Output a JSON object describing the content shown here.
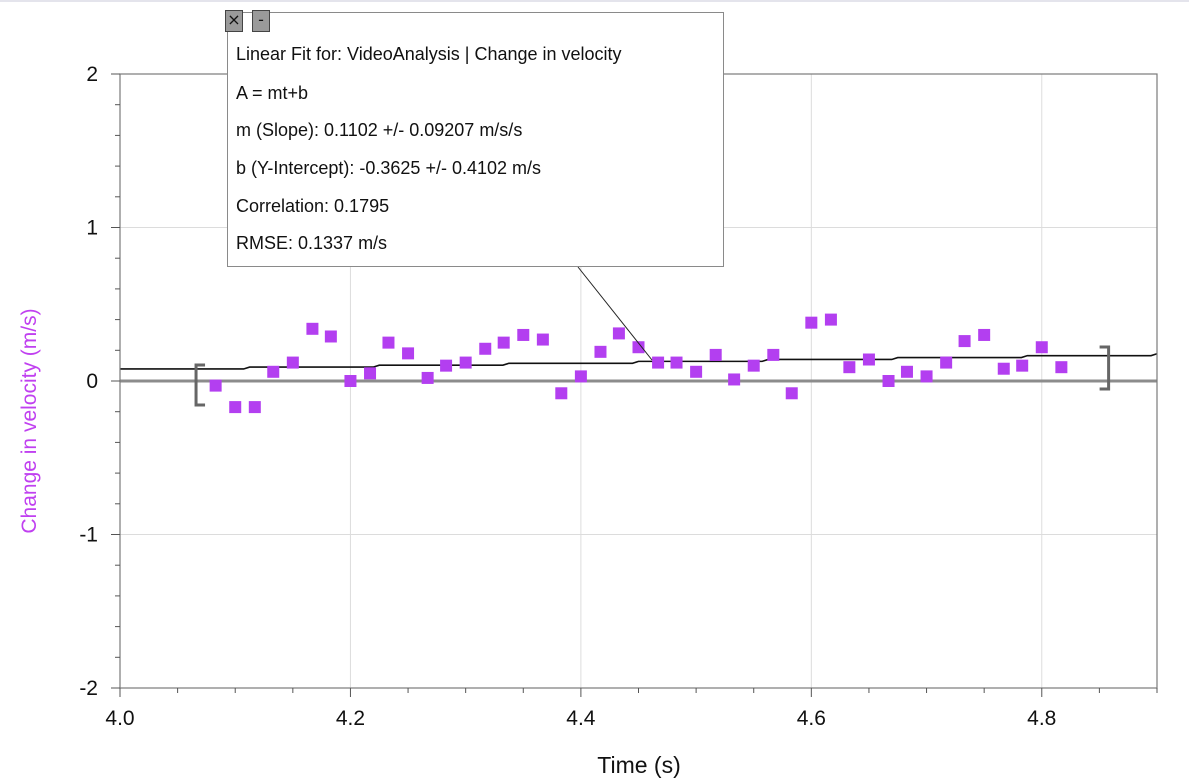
{
  "chart_data": {
    "type": "scatter",
    "xlabel": "Time (s)",
    "ylabel": "Change in velocity (m/s)",
    "xlim": [
      4.0,
      4.9
    ],
    "ylim": [
      -2,
      2
    ],
    "x_ticks": [
      4.0,
      4.2,
      4.4,
      4.6,
      4.8
    ],
    "x_tick_labels": [
      "4.0",
      "4.2",
      "4.4",
      "4.6",
      "4.8"
    ],
    "y_ticks": [
      2,
      1,
      0,
      -1,
      -2
    ],
    "y_tick_labels": [
      "2",
      "1",
      "0",
      "-1",
      "-2"
    ],
    "grid": true,
    "point_color": "#b33ff0",
    "zero_line": true,
    "series": [
      {
        "x": [
          4.083,
          4.1,
          4.117,
          4.133,
          4.15,
          4.167,
          4.183,
          4.2,
          4.217,
          4.233,
          4.25,
          4.267,
          4.283,
          4.3,
          4.317,
          4.333,
          4.35,
          4.367,
          4.383,
          4.4,
          4.417,
          4.433,
          4.45,
          4.467,
          4.483,
          4.5,
          4.517,
          4.533,
          4.55,
          4.567,
          4.583,
          4.6,
          4.617,
          4.633,
          4.65,
          4.667,
          4.683,
          4.7,
          4.717,
          4.733,
          4.75,
          4.767,
          4.783,
          4.8,
          4.817
        ],
        "y": [
          -0.03,
          -0.17,
          -0.17,
          0.06,
          0.12,
          0.34,
          0.29,
          0.0,
          0.05,
          0.25,
          0.18,
          0.02,
          0.1,
          0.12,
          0.21,
          0.25,
          0.3,
          0.27,
          -0.08,
          0.03,
          0.19,
          0.31,
          0.22,
          0.12,
          0.12,
          0.06,
          0.17,
          0.01,
          0.1,
          0.17,
          -0.08,
          0.38,
          0.4,
          0.09,
          0.14,
          0.0,
          0.06,
          0.03,
          0.12,
          0.26,
          0.3,
          0.08,
          0.1,
          0.22,
          0.09
        ]
      }
    ],
    "fit": {
      "slope": 0.1102,
      "intercept": -0.3625,
      "x_range": [
        4.0,
        4.9
      ],
      "bracket_range": [
        4.066,
        4.858
      ]
    }
  },
  "fit_panel": {
    "title": "Linear Fit for: VideoAnalysis | Change in velocity",
    "equation": "A = mt+b",
    "slope": "m (Slope): 0.1102 +/- 0.09207 m/s/s",
    "intercept": "b (Y-Intercept): -0.3625 +/- 0.4102 m/s",
    "correlation": "Correlation: 0.1795",
    "rmse": "RMSE: 0.1337 m/s",
    "close_glyph": "×",
    "minimize_glyph": "-"
  },
  "icons": {
    "close": "close-icon",
    "minimize": "minimize-icon"
  }
}
